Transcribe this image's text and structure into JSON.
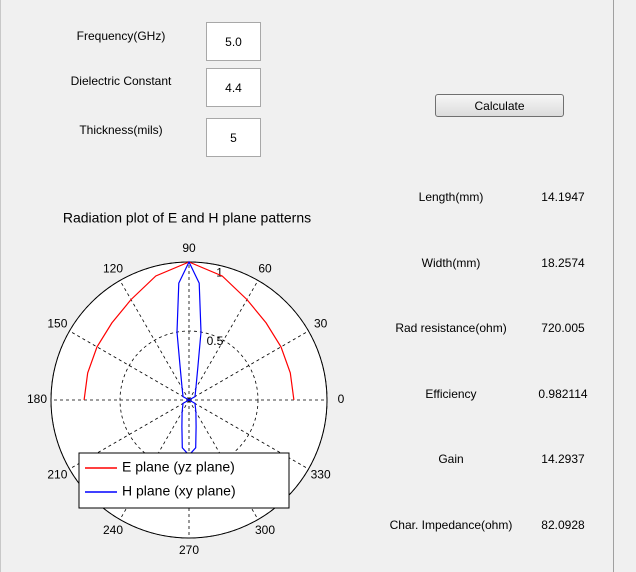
{
  "inputs": [
    {
      "label": "Frequency(GHz)",
      "value": "5.0"
    },
    {
      "label": "Dielectric Constant",
      "value": "4.4"
    },
    {
      "label": "Thickness(mils)",
      "value": "5"
    }
  ],
  "button": "Calculate",
  "results": [
    {
      "label": "Length(mm)",
      "value": "14.1947"
    },
    {
      "label": "Width(mm)",
      "value": "18.2574"
    },
    {
      "label": "Rad resistance(ohm)",
      "value": "720.005"
    },
    {
      "label": "Efficiency",
      "value": "0.982114"
    },
    {
      "label": "Gain",
      "value": "14.2937"
    },
    {
      "label": "Char. Impedance(ohm)",
      "value": "82.0928"
    }
  ],
  "chart_data": {
    "type": "polar",
    "title": "Radiation plot of E and H plane patterns",
    "rlim": [
      0,
      1
    ],
    "rticks": [
      0.5,
      1
    ],
    "thetaticks": [
      0,
      30,
      60,
      90,
      120,
      150,
      180,
      210,
      240,
      270,
      300,
      330
    ],
    "grid": true,
    "series": [
      {
        "name": "E plane (yz plane)",
        "color": "#ff0000",
        "theta": [
          0,
          15,
          30,
          45,
          60,
          75,
          90,
          105,
          120,
          135,
          150,
          165,
          180
        ],
        "values": [
          0.76,
          0.76,
          0.77,
          0.79,
          0.84,
          0.93,
          1,
          0.93,
          0.84,
          0.79,
          0.77,
          0.76,
          0.76
        ]
      },
      {
        "name": "H plane (xy plane)",
        "color": "#0000ff",
        "theta": [
          0,
          30,
          60,
          75,
          80,
          85,
          90,
          95,
          100,
          105,
          120,
          150,
          180,
          210,
          240,
          255,
          262,
          270,
          278,
          285,
          300,
          330,
          360
        ],
        "values": [
          0,
          0.05,
          0.1,
          0.25,
          0.5,
          0.85,
          1,
          0.85,
          0.5,
          0.25,
          0.1,
          0.05,
          0,
          0.05,
          0.1,
          0.2,
          0.35,
          0.4,
          0.35,
          0.2,
          0.1,
          0.05,
          0
        ]
      }
    ]
  }
}
